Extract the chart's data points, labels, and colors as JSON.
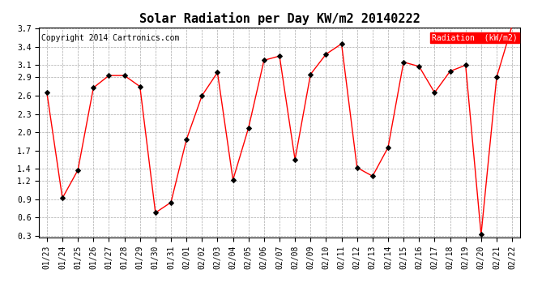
{
  "title": "Solar Radiation per Day KW/m2 20140222",
  "copyright": "Copyright 2014 Cartronics.com",
  "legend_label": "Radiation  (kW/m2)",
  "dates": [
    "01/23",
    "01/24",
    "01/25",
    "01/26",
    "01/27",
    "01/28",
    "01/29",
    "01/30",
    "01/31",
    "02/01",
    "02/02",
    "02/03",
    "02/04",
    "02/05",
    "02/06",
    "02/07",
    "02/08",
    "02/09",
    "02/10",
    "02/11",
    "02/12",
    "02/13",
    "02/14",
    "02/15",
    "02/16",
    "02/17",
    "02/18",
    "02/19",
    "02/20",
    "02/21",
    "02/22"
  ],
  "values": [
    2.65,
    0.92,
    1.38,
    2.73,
    2.93,
    2.93,
    2.75,
    0.68,
    0.85,
    1.88,
    2.6,
    2.98,
    1.22,
    2.07,
    3.18,
    3.25,
    1.55,
    2.95,
    3.28,
    3.45,
    1.42,
    1.28,
    1.75,
    3.15,
    3.08,
    2.65,
    3.0,
    3.1,
    0.32,
    2.9,
    3.75
  ],
  "line_color": "#ff0000",
  "marker_color": "#000000",
  "background_color": "#ffffff",
  "grid_color": "#aaaaaa",
  "ylim_min": 0.28,
  "ylim_max": 3.72,
  "yticks": [
    0.3,
    0.6,
    0.9,
    1.2,
    1.4,
    1.7,
    2.0,
    2.3,
    2.6,
    2.9,
    3.1,
    3.4,
    3.7
  ],
  "title_fontsize": 11,
  "tick_fontsize": 7,
  "copyright_fontsize": 7,
  "legend_fontsize": 7,
  "legend_bg": "#ff0000",
  "legend_text_color": "#ffffff"
}
